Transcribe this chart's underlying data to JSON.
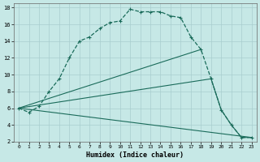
{
  "xlabel": "Humidex (Indice chaleur)",
  "bg_color": "#c6e8e6",
  "grid_color": "#a8cece",
  "line_color": "#1a6b5a",
  "xlim": [
    -0.5,
    23.5
  ],
  "ylim": [
    2,
    18.5
  ],
  "yticks": [
    2,
    4,
    6,
    8,
    10,
    12,
    14,
    16,
    18
  ],
  "xticks": [
    0,
    1,
    2,
    3,
    4,
    5,
    6,
    7,
    8,
    9,
    10,
    11,
    12,
    13,
    14,
    15,
    16,
    17,
    18,
    19,
    20,
    21,
    22,
    23
  ],
  "curve_x": [
    0,
    1,
    2,
    3,
    4,
    5,
    6,
    7,
    8,
    9,
    10,
    11,
    12,
    13,
    14,
    15,
    16,
    17,
    18,
    19,
    20,
    21,
    22,
    23
  ],
  "curve_y": [
    6.0,
    5.5,
    6.2,
    8.0,
    9.5,
    12.0,
    14.0,
    14.5,
    15.5,
    16.2,
    16.4,
    17.8,
    17.5,
    17.5,
    17.5,
    17.0,
    16.8,
    14.5,
    13.0,
    9.5,
    5.8,
    4.0,
    2.5,
    2.5
  ],
  "line1_x": [
    0,
    18
  ],
  "line1_y": [
    6.0,
    13.0
  ],
  "line2_x": [
    0,
    19,
    20,
    21,
    22,
    23
  ],
  "line2_y": [
    6.0,
    9.5,
    5.8,
    4.0,
    2.5,
    2.5
  ],
  "line3_x": [
    0,
    23
  ],
  "line3_y": [
    6.0,
    2.5
  ]
}
